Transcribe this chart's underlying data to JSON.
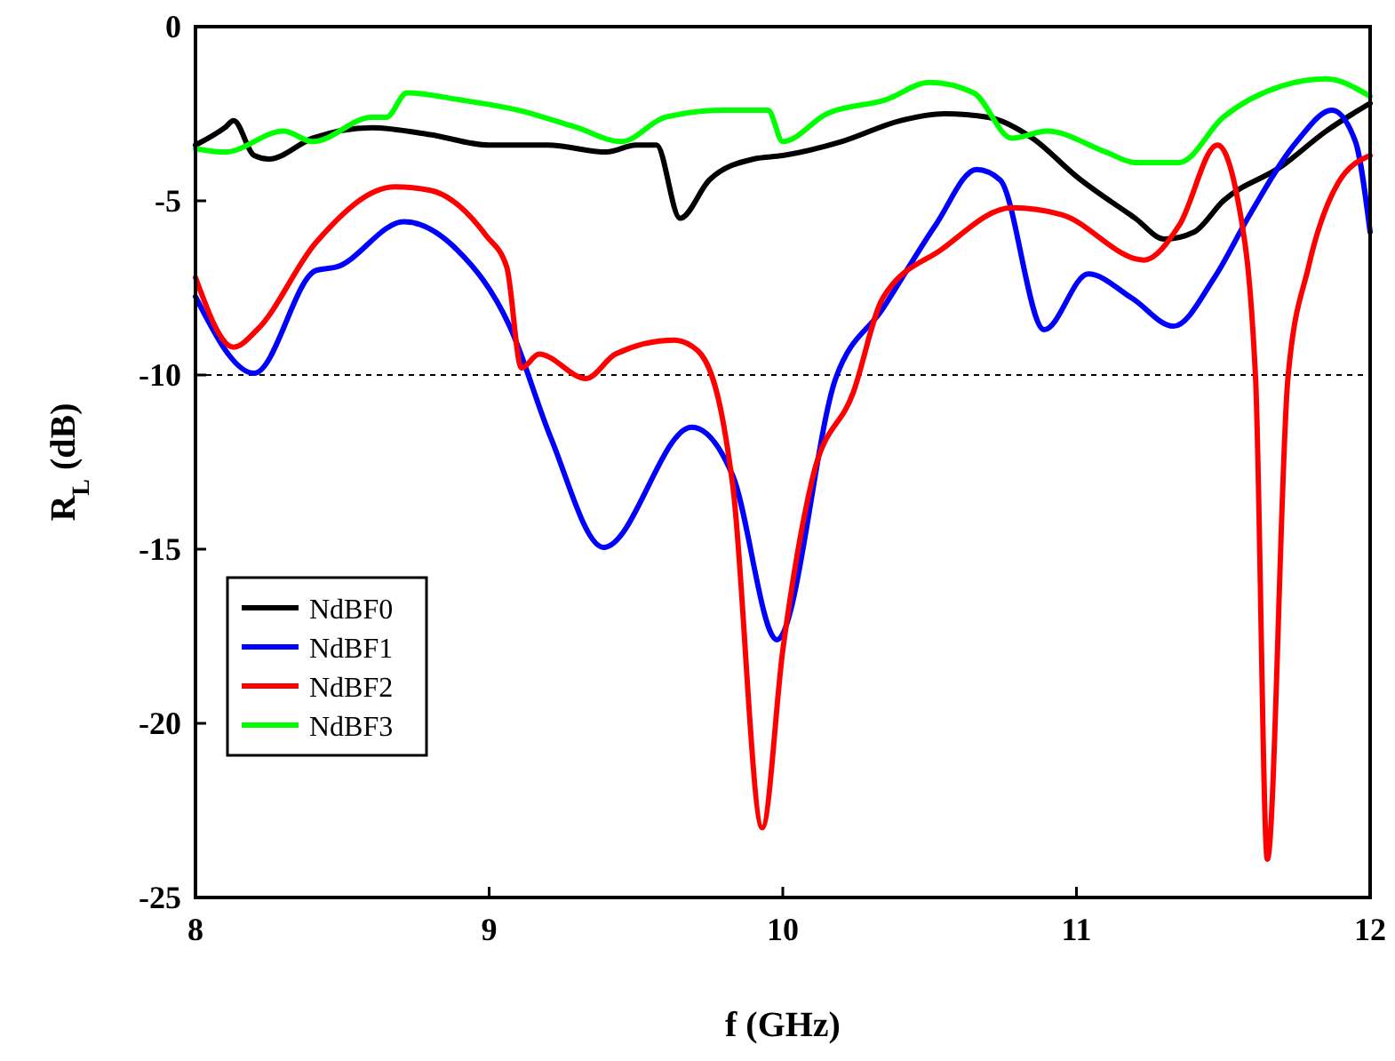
{
  "chart_data": {
    "type": "line",
    "xlabel": "f (GHz)",
    "ylabel": "R$_{L}$ (dB)",
    "xlim": [
      8,
      12
    ],
    "xticks": [
      8,
      9,
      10,
      11,
      12
    ],
    "ylim": [
      -25,
      0
    ],
    "yticks": [
      -25,
      -20,
      -15,
      -10,
      -5,
      0
    ],
    "legend": "bottom left",
    "grid": false,
    "line_style": "solid",
    "ref_lines": [
      {
        "axis": "y",
        "value": -10,
        "line_style": "dashed",
        "color": "#000000"
      }
    ],
    "series": [
      {
        "name": "NdBF0",
        "color": "#000000",
        "x": [
          8,
          8.1,
          8.13,
          8.2,
          8.25,
          8.4,
          8.6,
          8.8,
          9.0,
          9.2,
          9.4,
          9.5,
          9.57,
          9.65,
          9.75,
          9.9,
          10.0,
          10.2,
          10.4,
          10.55,
          10.7,
          10.85,
          11.0,
          11.2,
          11.3,
          11.4,
          11.5,
          11.7,
          11.85,
          12
        ],
        "values": [
          -3.4,
          -2.9,
          -2.7,
          -3.7,
          -3.8,
          -3.2,
          -2.9,
          -3.1,
          -3.4,
          -3.4,
          -3.6,
          -3.4,
          -3.4,
          -5.5,
          -4.4,
          -3.8,
          -3.7,
          -3.3,
          -2.7,
          -2.5,
          -2.6,
          -3.2,
          -4.3,
          -5.5,
          -6.1,
          -5.9,
          -5.0,
          -4.0,
          -3.0,
          -2.2
        ]
      },
      {
        "name": "NdBF1",
        "color": "#0000ff",
        "x": [
          8,
          8.2,
          8.41,
          8.48,
          8.71,
          8.89,
          9.07,
          9.21,
          9.39,
          9.69,
          9.83,
          9.98,
          10.18,
          10.34,
          10.52,
          10.66,
          10.74,
          10.89,
          11.04,
          11.19,
          11.33,
          11.47,
          11.59,
          11.75,
          11.87,
          11.95,
          12
        ],
        "values": [
          -7.75,
          -9.95,
          -7.0,
          -6.9,
          -5.6,
          -6.4,
          -8.6,
          -11.8,
          -14.95,
          -11.5,
          -12.9,
          -17.6,
          -10.1,
          -8.1,
          -5.7,
          -4.1,
          -4.4,
          -8.7,
          -7.1,
          -7.8,
          -8.6,
          -7.2,
          -5.4,
          -3.3,
          -2.4,
          -3.3,
          -5.9
        ]
      },
      {
        "name": "NdBF2",
        "color": "#ff0000",
        "x": [
          8,
          8.13,
          8.21,
          8.41,
          8.68,
          8.8,
          8.99,
          9.06,
          9.11,
          9.17,
          9.33,
          9.43,
          9.63,
          9.71,
          9.8,
          9.83,
          9.93,
          10.0,
          10.1,
          10.24,
          10.34,
          10.54,
          10.78,
          10.95,
          11.23,
          11.35,
          11.48,
          11.55,
          11.61,
          11.65,
          11.72,
          11.79,
          11.89,
          12
        ],
        "values": [
          -7.2,
          -9.2,
          -8.7,
          -6.2,
          -4.6,
          -4.7,
          -6.0,
          -6.9,
          -9.8,
          -9.4,
          -10.1,
          -9.4,
          -9.0,
          -9.3,
          -11.5,
          -13.2,
          -23.0,
          -17.9,
          -13.0,
          -10.5,
          -7.8,
          -6.4,
          -5.2,
          -5.4,
          -6.7,
          -5.7,
          -3.4,
          -5.0,
          -10.1,
          -23.9,
          -10.1,
          -6.9,
          -4.5,
          -3.7
        ]
      },
      {
        "name": "NdBF3",
        "color": "#00ff00",
        "x": [
          8,
          8.1,
          8.3,
          8.4,
          8.6,
          8.65,
          8.72,
          8.9,
          9.1,
          9.3,
          9.45,
          9.6,
          9.8,
          9.95,
          10.0,
          10.15,
          10.35,
          10.5,
          10.65,
          10.78,
          10.9,
          11.1,
          11.2,
          11.35,
          11.5,
          11.7,
          11.85,
          12
        ],
        "values": [
          -3.5,
          -3.6,
          -3.0,
          -3.3,
          -2.6,
          -2.6,
          -1.9,
          -2.1,
          -2.4,
          -2.9,
          -3.3,
          -2.6,
          -2.4,
          -2.4,
          -3.3,
          -2.5,
          -2.1,
          -1.6,
          -1.9,
          -3.2,
          -3.0,
          -3.6,
          -3.9,
          -3.9,
          -2.6,
          -1.7,
          -1.5,
          -2.0
        ]
      }
    ]
  }
}
